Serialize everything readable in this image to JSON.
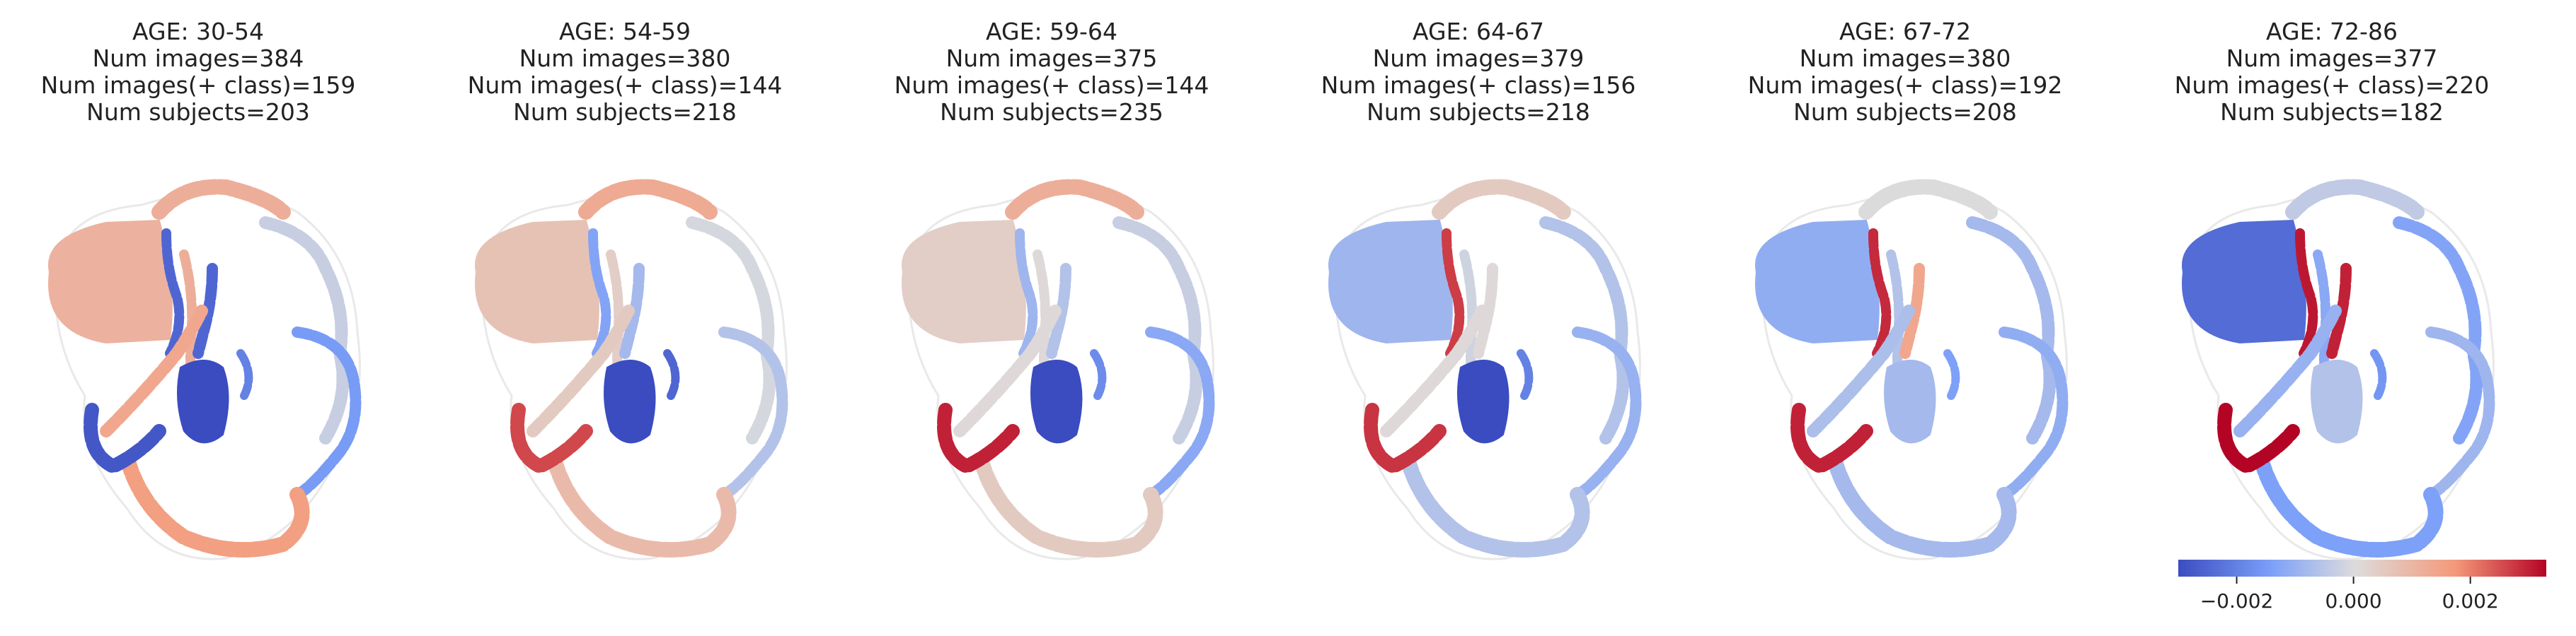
{
  "panels": [
    {
      "title": [
        "AGE: 30-54",
        "Num images=384",
        "Num images(+ class)=159",
        "Num subjects=203"
      ],
      "regions": {
        "cerebellum": 0.0011,
        "caudate": -0.0025,
        "putamen": -0.0025,
        "thalamus": -0.003,
        "insula": 0.0014,
        "temporal": 0.0016,
        "frontal": 0.0012,
        "occipital": -0.0003,
        "parietal": -0.0015,
        "hippocampus": -0.0028,
        "cingulate": 0.0012,
        "ventricle": -0.002
      }
    },
    {
      "title": [
        "AGE: 54-59",
        "Num images=380",
        "Num images(+ class)=144",
        "Num subjects=218"
      ],
      "regions": {
        "cerebellum": 0.0007,
        "caudate": -0.0013,
        "putamen": -0.0008,
        "thalamus": -0.003,
        "insula": 0.0005,
        "temporal": 0.0009,
        "frontal": 0.0013,
        "occipital": -0.0001,
        "parietal": -0.0006,
        "hippocampus": 0.0026,
        "cingulate": 0.0004,
        "ventricle": -0.0025
      }
    },
    {
      "title": [
        "AGE: 59-64",
        "Num images=375",
        "Num images(+ class)=144",
        "Num subjects=235"
      ],
      "regions": {
        "cerebellum": 0.0004,
        "caudate": -0.0009,
        "putamen": -0.0006,
        "thalamus": -0.003,
        "insula": 0.0001,
        "temporal": 0.0005,
        "frontal": 0.0012,
        "occipital": -0.0003,
        "parietal": -0.0012,
        "hippocampus": 0.003,
        "cingulate": 0.0001,
        "ventricle": -0.0018
      }
    },
    {
      "title": [
        "AGE: 64-67",
        "Num images=379",
        "Num images(+ class)=156",
        "Num subjects=218"
      ],
      "regions": {
        "cerebellum": -0.0009,
        "caudate": 0.0027,
        "putamen": 0.0001,
        "thalamus": -0.003,
        "insula": 0.0001,
        "temporal": -0.0006,
        "frontal": 0.0005,
        "occipital": -0.0006,
        "parietal": -0.001,
        "hippocampus": 0.0028,
        "cingulate": -0.0002,
        "ventricle": -0.002
      }
    },
    {
      "title": [
        "AGE: 67-72",
        "Num images=380",
        "Num images(+ class)=192",
        "Num subjects=208"
      ],
      "regions": {
        "cerebellum": -0.0011,
        "caudate": 0.0029,
        "putamen": 0.0014,
        "thalamus": -0.0008,
        "insula": -0.0007,
        "temporal": -0.0008,
        "frontal": 0.0,
        "occipital": -0.0008,
        "parietal": -0.0011,
        "hippocampus": 0.003,
        "cingulate": -0.0006,
        "ventricle": -0.0014
      }
    },
    {
      "title": [
        "AGE: 72-86",
        "Num images=377",
        "Num images(+ class)=220",
        "Num subjects=182"
      ],
      "regions": {
        "cerebellum": -0.0024,
        "caudate": 0.0031,
        "putamen": 0.003,
        "thalamus": -0.0006,
        "insula": -0.001,
        "temporal": -0.0014,
        "frontal": -0.0004,
        "occipital": -0.0013,
        "parietal": -0.0009,
        "hippocampus": 0.0033,
        "cingulate": -0.0012,
        "ventricle": -0.0016
      }
    }
  ],
  "colorbar": {
    "range": [
      -0.003,
      0.0033
    ],
    "ticks": [
      -0.002,
      0.0,
      0.002
    ],
    "tick_labels": [
      "−0.002",
      "0.000",
      "0.002"
    ],
    "colormap": "coolwarm"
  },
  "chart_data": {
    "type": "heatmap",
    "facets": [
      "AGE: 30-54",
      "AGE: 54-59",
      "AGE: 59-64",
      "AGE: 64-67",
      "AGE: 67-72",
      "AGE: 72-86"
    ],
    "colorbar_ticks": [
      -0.002,
      0.0,
      0.002
    ]
  }
}
